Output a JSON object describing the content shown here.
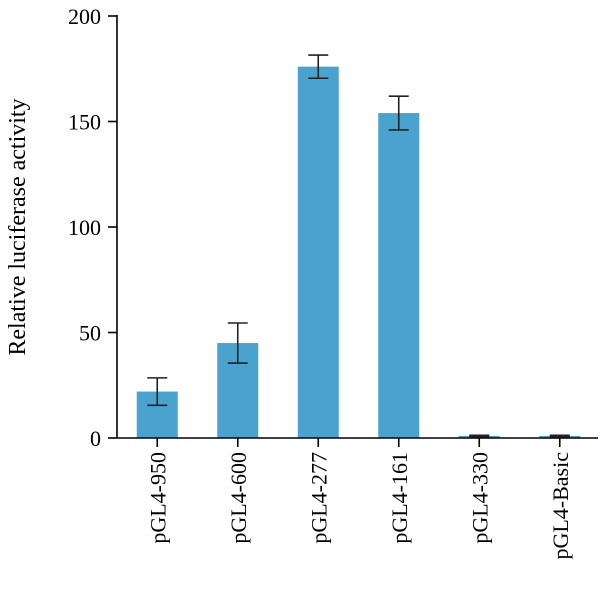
{
  "chart_data": {
    "type": "bar",
    "title": "",
    "xlabel": "",
    "ylabel": "Relative luciferase activity",
    "ylim": [
      0,
      200
    ],
    "yticks": [
      0,
      50,
      100,
      150,
      200
    ],
    "categories": [
      "pGL4-950",
      "pGL4-600",
      "pGL4-277",
      "pGL4-161",
      "pGL4-330",
      "pGL4-Basic"
    ],
    "values": [
      22,
      45,
      176,
      154,
      1,
      1
    ],
    "errors": [
      6.5,
      9.5,
      5.5,
      8,
      0.3,
      0.3
    ],
    "bar_color": "#4aa2cf",
    "grid": false,
    "legend": "none"
  }
}
